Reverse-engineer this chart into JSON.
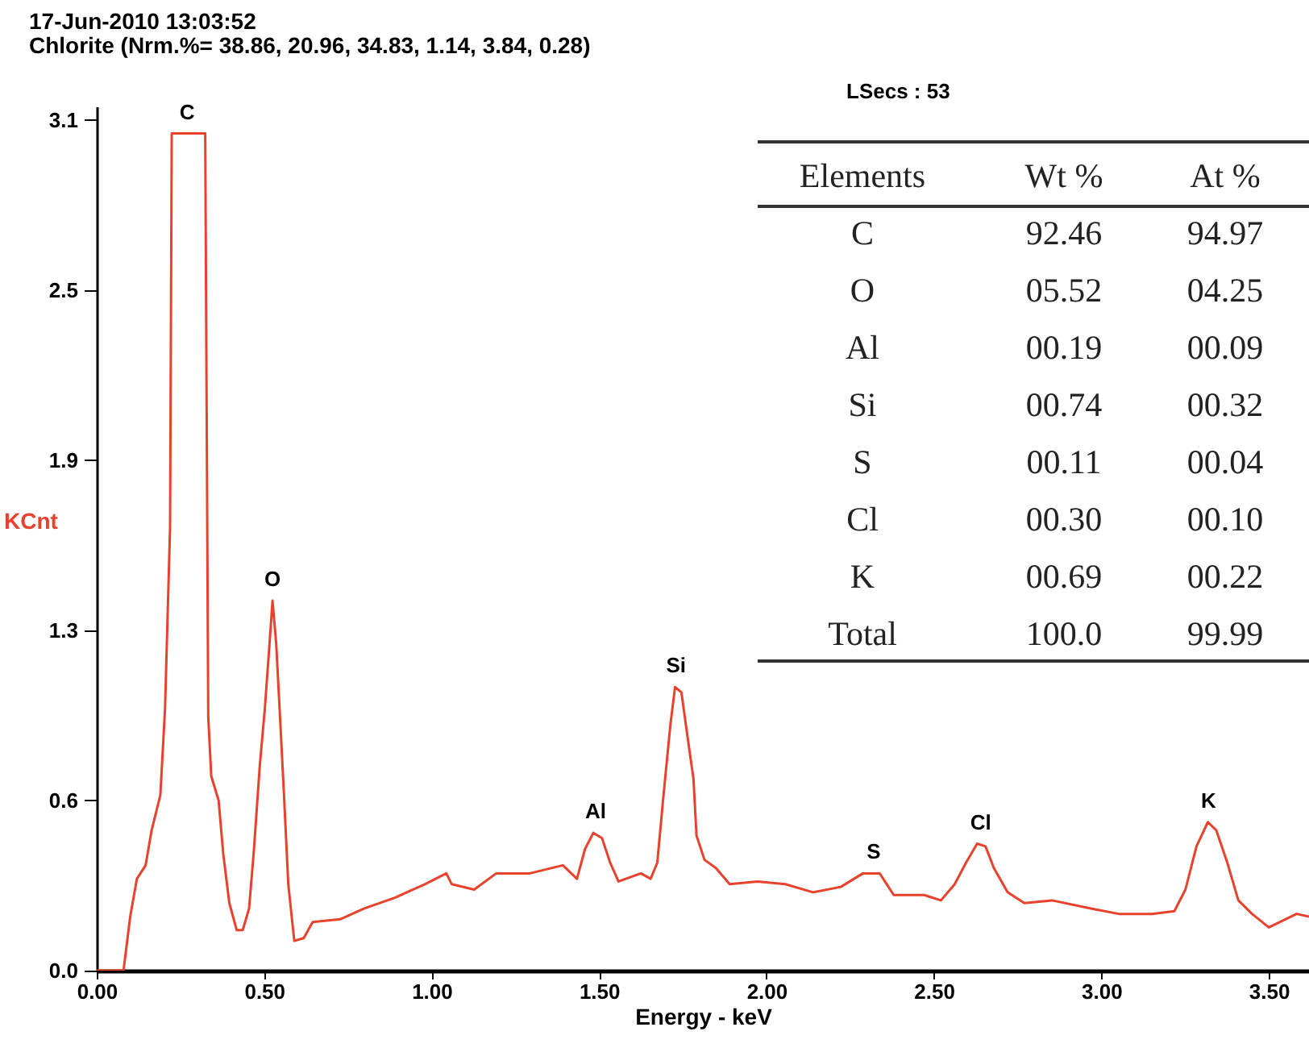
{
  "chart_data": {
    "type": "line",
    "title": "17-Jun-2010 13:03:52",
    "subtitle": "Chlorite (Nrm.%= 38.86, 20.96, 34.83, 1.14, 3.84, 0.28)",
    "xlabel": "Energy - keV",
    "ylabel": "KCnt",
    "x": [
      0,
      0.08,
      0.1,
      0.12,
      0.146,
      0.164,
      0.19,
      0.204,
      0.219,
      0.224,
      0.324,
      0.333,
      0.342,
      0.364,
      0.378,
      0.396,
      0.418,
      0.436,
      0.455,
      0.469,
      0.487,
      0.502,
      0.516,
      0.525,
      0.536,
      0.549,
      0.56,
      0.572,
      0.59,
      0.618,
      0.645,
      0.727,
      0.799,
      0.89,
      0.98,
      1.044,
      1.06,
      1.127,
      1.193,
      1.293,
      1.392,
      1.434,
      1.458,
      1.483,
      1.509,
      1.533,
      1.558,
      1.625,
      1.654,
      1.674,
      1.691,
      1.713,
      1.727,
      1.746,
      1.766,
      1.782,
      1.791,
      1.815,
      1.849,
      1.89,
      1.973,
      2.056,
      2.139,
      2.222,
      2.288,
      2.338,
      2.38,
      2.471,
      2.521,
      2.562,
      2.596,
      2.629,
      2.654,
      2.679,
      2.72,
      2.77,
      2.853,
      2.969,
      3.052,
      3.151,
      3.218,
      3.251,
      3.284,
      3.318,
      3.343,
      3.376,
      3.409,
      3.45,
      3.5,
      3.583,
      3.62
    ],
    "series": [
      {
        "color": "#e8412c",
        "values": [
          0,
          0,
          0.2,
          0.34,
          0.39,
          0.52,
          0.65,
          0.97,
          1.64,
          3.1,
          3.1,
          0.94,
          0.72,
          0.63,
          0.43,
          0.25,
          0.15,
          0.15,
          0.23,
          0.44,
          0.76,
          0.97,
          1.21,
          1.37,
          1.21,
          0.9,
          0.63,
          0.32,
          0.11,
          0.12,
          0.18,
          0.19,
          0.23,
          0.27,
          0.32,
          0.36,
          0.32,
          0.3,
          0.36,
          0.36,
          0.39,
          0.34,
          0.45,
          0.51,
          0.49,
          0.4,
          0.33,
          0.36,
          0.34,
          0.4,
          0.63,
          0.91,
          1.05,
          1.03,
          0.85,
          0.71,
          0.5,
          0.41,
          0.38,
          0.32,
          0.33,
          0.32,
          0.29,
          0.31,
          0.36,
          0.36,
          0.28,
          0.28,
          0.26,
          0.32,
          0.4,
          0.47,
          0.46,
          0.38,
          0.29,
          0.25,
          0.26,
          0.23,
          0.21,
          0.21,
          0.22,
          0.3,
          0.46,
          0.55,
          0.52,
          0.4,
          0.26,
          0.21,
          0.16,
          0.21,
          0.2
        ]
      }
    ],
    "xlim": [
      0,
      3.62
    ],
    "ylim": [
      0,
      3.2
    ],
    "xticks": [
      {
        "value": 0,
        "label": "0.00"
      },
      {
        "value": 0.5,
        "label": "0.50"
      },
      {
        "value": 1,
        "label": "1.00"
      },
      {
        "value": 1.5,
        "label": "1.50"
      },
      {
        "value": 2,
        "label": "2.00"
      },
      {
        "value": 2.5,
        "label": "2.50"
      },
      {
        "value": 3,
        "label": "3.00"
      },
      {
        "value": 3.5,
        "label": "3.50"
      }
    ],
    "yticks": [
      {
        "value": 0,
        "label": "0.0"
      },
      {
        "value": 0.63,
        "label": "0.6"
      },
      {
        "value": 1.26,
        "label": "1.3"
      },
      {
        "value": 1.89,
        "label": "1.9"
      },
      {
        "value": 2.52,
        "label": "2.5"
      },
      {
        "value": 3.15,
        "label": "3.1"
      }
    ],
    "annotations": [
      {
        "text": "C",
        "x": 0.27,
        "y": 3.1
      },
      {
        "text": "O",
        "x": 0.525,
        "y": 1.37
      },
      {
        "text": "Al",
        "x": 1.49,
        "y": 0.51
      },
      {
        "text": "Si",
        "x": 1.73,
        "y": 1.05
      },
      {
        "text": "S",
        "x": 2.32,
        "y": 0.36
      },
      {
        "text": "Cl",
        "x": 2.64,
        "y": 0.47
      },
      {
        "text": "K",
        "x": 3.32,
        "y": 0.55
      },
      "LSecs : 53",
      "Elements",
      "Wt %",
      "At %",
      "C",
      "92.46",
      "94.97",
      "O",
      "05.52",
      "04.25",
      "Al",
      "00.19",
      "00.09",
      "Si",
      "00.74",
      "00.32",
      "S",
      "00.11",
      "00.04",
      "Cl",
      "00.30",
      "00.10",
      "K",
      "00.69",
      "00.22",
      "Total",
      "100.0",
      "99.99"
    ]
  }
}
